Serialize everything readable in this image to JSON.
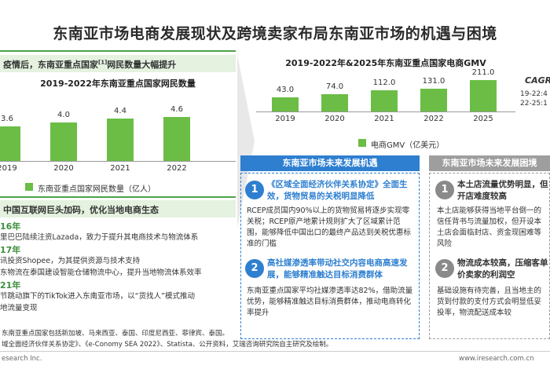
{
  "title": "东南亚市场电商发展现状及跨境卖家布局东南亚市场的机遇与困境",
  "left": {
    "band": "疫情后，东南亚重点国家",
    "band_sup": "[1]",
    "band_tail": "网民数量大幅提升",
    "chart_title": "2019-2022年东南亚重点国家网民数量",
    "chart_data": {
      "type": "bar",
      "categories": [
        "2019",
        "2020",
        "2021",
        "2022"
      ],
      "values": [
        3.6,
        4.0,
        4.4,
        4.6
      ],
      "labels": [
        "3.6",
        "4.0",
        "4.4",
        "4.6"
      ],
      "series_name": "东南亚重点国家网民数量（亿人）"
    },
    "band2": "中国互联网巨头加码，优化当地电商生态",
    "events": [
      {
        "year": "16年",
        "text": "里巴巴陆续注资Lazada，致力于提升其电商技术与物流体系"
      },
      {
        "year": "17年",
        "text": "讯投资Shopee，为其提供资源与技术支持"
      },
      {
        "year": "",
        "text": "东物流在泰国建设智能仓储物流中心，提升当地物流体系效率"
      },
      {
        "year": "21年",
        "text": "节跳动旗下的TikTok进入东南亚市场，以“货找人”模式推动"
      },
      {
        "year": "",
        "text": "地流量变现"
      }
    ]
  },
  "right_chart": {
    "title": "2019-2022年&2025年东南亚重点国家电商GMV",
    "chart_data": {
      "type": "bar",
      "categories": [
        "2019",
        "2020",
        "2021",
        "2022",
        "2025"
      ],
      "values": [
        43.0,
        74.0,
        112.0,
        131.0,
        211.0
      ],
      "labels": [
        "43.0",
        "74.0",
        "112.0",
        "131.0",
        "211.0"
      ],
      "series_name": "电商GMV（亿美元）"
    },
    "cagr_label": "CAGR",
    "cagr_lines": [
      "19-22:4",
      "22-25:1"
    ]
  },
  "opportunity": {
    "header": "东南亚市场未来发展机遇",
    "items": [
      {
        "num": "1",
        "title": "《区域全面经济伙伴关系协定》全面生效，货物贸易的关税明显降低",
        "body": "RCEP成员国内90%以上的货物贸易将逐步实现零关税；RCEP原产地累计规则扩大了区域累计范围，能够降低中国出口的最终产品达到关税优惠标准的门槛"
      },
      {
        "num": "2",
        "title": "高社媒渗透率带动社交内容电商高速发展，能够精准触达目标消费群体",
        "body": "东南亚重点国家平均社媒渗透率达82%，借助流量优势，能够精准触达目标消费群体，推动电商转化率提升"
      }
    ]
  },
  "difficulty": {
    "header": "东南亚市场未来发展困境",
    "items": [
      {
        "num": "1",
        "title": "本土店流量优势明显，但开店难度较高",
        "body": "本土店能够获得当地平台倒一的信任背书与流量加权，但开设本土店会面临封店、资金现困难等风险"
      },
      {
        "num": "2",
        "title": "物流成本较高，压缩客单价卖家的利润空",
        "body": "基础设施有待完善，且当地主的货到付款的支付方式会明显低妥投率，物流配送成本较"
      }
    ]
  },
  "footnotes": [
    "东南亚重点国家包括新加坡、马来西亚、泰国、印度尼西亚、菲律宾、泰国。",
    "域全面经济伙伴关系协定》、《e-Conomy SEA 2022》、Statista、公开资料，艾瑞咨询研究院自主研究及绘制。"
  ],
  "footer": {
    "left": "esearch Inc.",
    "right": "www.iresearch.com.cn"
  }
}
